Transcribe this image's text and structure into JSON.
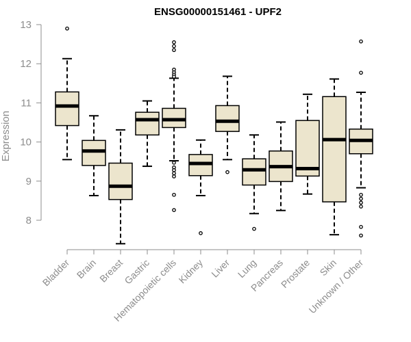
{
  "chart_data": {
    "type": "boxplot",
    "title": "ENSG00000151461 - UPF2",
    "xlabel": "",
    "ylabel": "Expression",
    "ylim": [
      7.3,
      13.1
    ],
    "yticks": [
      8,
      9,
      10,
      11,
      12,
      13
    ],
    "grid": false,
    "legend": "none",
    "colors": {
      "box_fill": "#ece5cd",
      "box_stroke": "#000000",
      "axis": "#8c8c8c",
      "title": "#000000"
    },
    "categories": [
      "Bladder",
      "Brain",
      "Breast",
      "Gastric",
      "Hematopoietic cells",
      "Kidney",
      "Liver",
      "Lung",
      "Pancreas",
      "Prostate",
      "Skin",
      "Unknown / Other"
    ],
    "boxes": [
      {
        "category": "Bladder",
        "whisker_low": 9.55,
        "q1": 10.42,
        "median": 10.92,
        "q3": 11.28,
        "whisker_high": 12.13,
        "outliers": [
          12.9
        ]
      },
      {
        "category": "Brain",
        "whisker_low": 8.63,
        "q1": 9.4,
        "median": 9.77,
        "q3": 10.04,
        "whisker_high": 10.67,
        "outliers": []
      },
      {
        "category": "Breast",
        "whisker_low": 7.4,
        "q1": 8.53,
        "median": 8.87,
        "q3": 9.46,
        "whisker_high": 10.31,
        "outliers": []
      },
      {
        "category": "Gastric",
        "whisker_low": 9.38,
        "q1": 10.18,
        "median": 10.57,
        "q3": 10.76,
        "whisker_high": 11.05,
        "outliers": []
      },
      {
        "category": "Hematopoietic cells",
        "whisker_low": 9.52,
        "q1": 10.37,
        "median": 10.57,
        "q3": 10.86,
        "whisker_high": 11.63,
        "outliers": [
          12.55,
          12.45,
          12.35,
          11.85,
          11.78,
          11.72,
          11.67,
          9.47,
          9.35,
          9.28,
          9.2,
          9.12,
          8.65,
          8.26
        ]
      },
      {
        "category": "Kidney",
        "whisker_low": 8.63,
        "q1": 9.14,
        "median": 9.45,
        "q3": 9.68,
        "whisker_high": 10.05,
        "outliers": [
          7.67
        ]
      },
      {
        "category": "Liver",
        "whisker_low": 9.55,
        "q1": 10.27,
        "median": 10.53,
        "q3": 10.93,
        "whisker_high": 11.68,
        "outliers": [
          9.23
        ]
      },
      {
        "category": "Lung",
        "whisker_low": 8.17,
        "q1": 8.9,
        "median": 9.29,
        "q3": 9.57,
        "whisker_high": 10.18,
        "outliers": [
          7.78
        ]
      },
      {
        "category": "Pancreas",
        "whisker_low": 8.25,
        "q1": 8.99,
        "median": 9.37,
        "q3": 9.77,
        "whisker_high": 10.51,
        "outliers": []
      },
      {
        "category": "Prostate",
        "whisker_low": 8.67,
        "q1": 9.13,
        "median": 9.32,
        "q3": 10.55,
        "whisker_high": 11.22,
        "outliers": []
      },
      {
        "category": "Skin",
        "whisker_low": 7.63,
        "q1": 8.47,
        "median": 10.06,
        "q3": 11.16,
        "whisker_high": 11.61,
        "outliers": []
      },
      {
        "category": "Unknown / Other",
        "whisker_low": 8.83,
        "q1": 9.7,
        "median": 10.04,
        "q3": 10.33,
        "whisker_high": 11.27,
        "outliers": [
          12.57,
          11.77,
          8.65,
          8.55,
          8.45,
          8.35,
          7.83,
          7.61
        ]
      }
    ]
  }
}
